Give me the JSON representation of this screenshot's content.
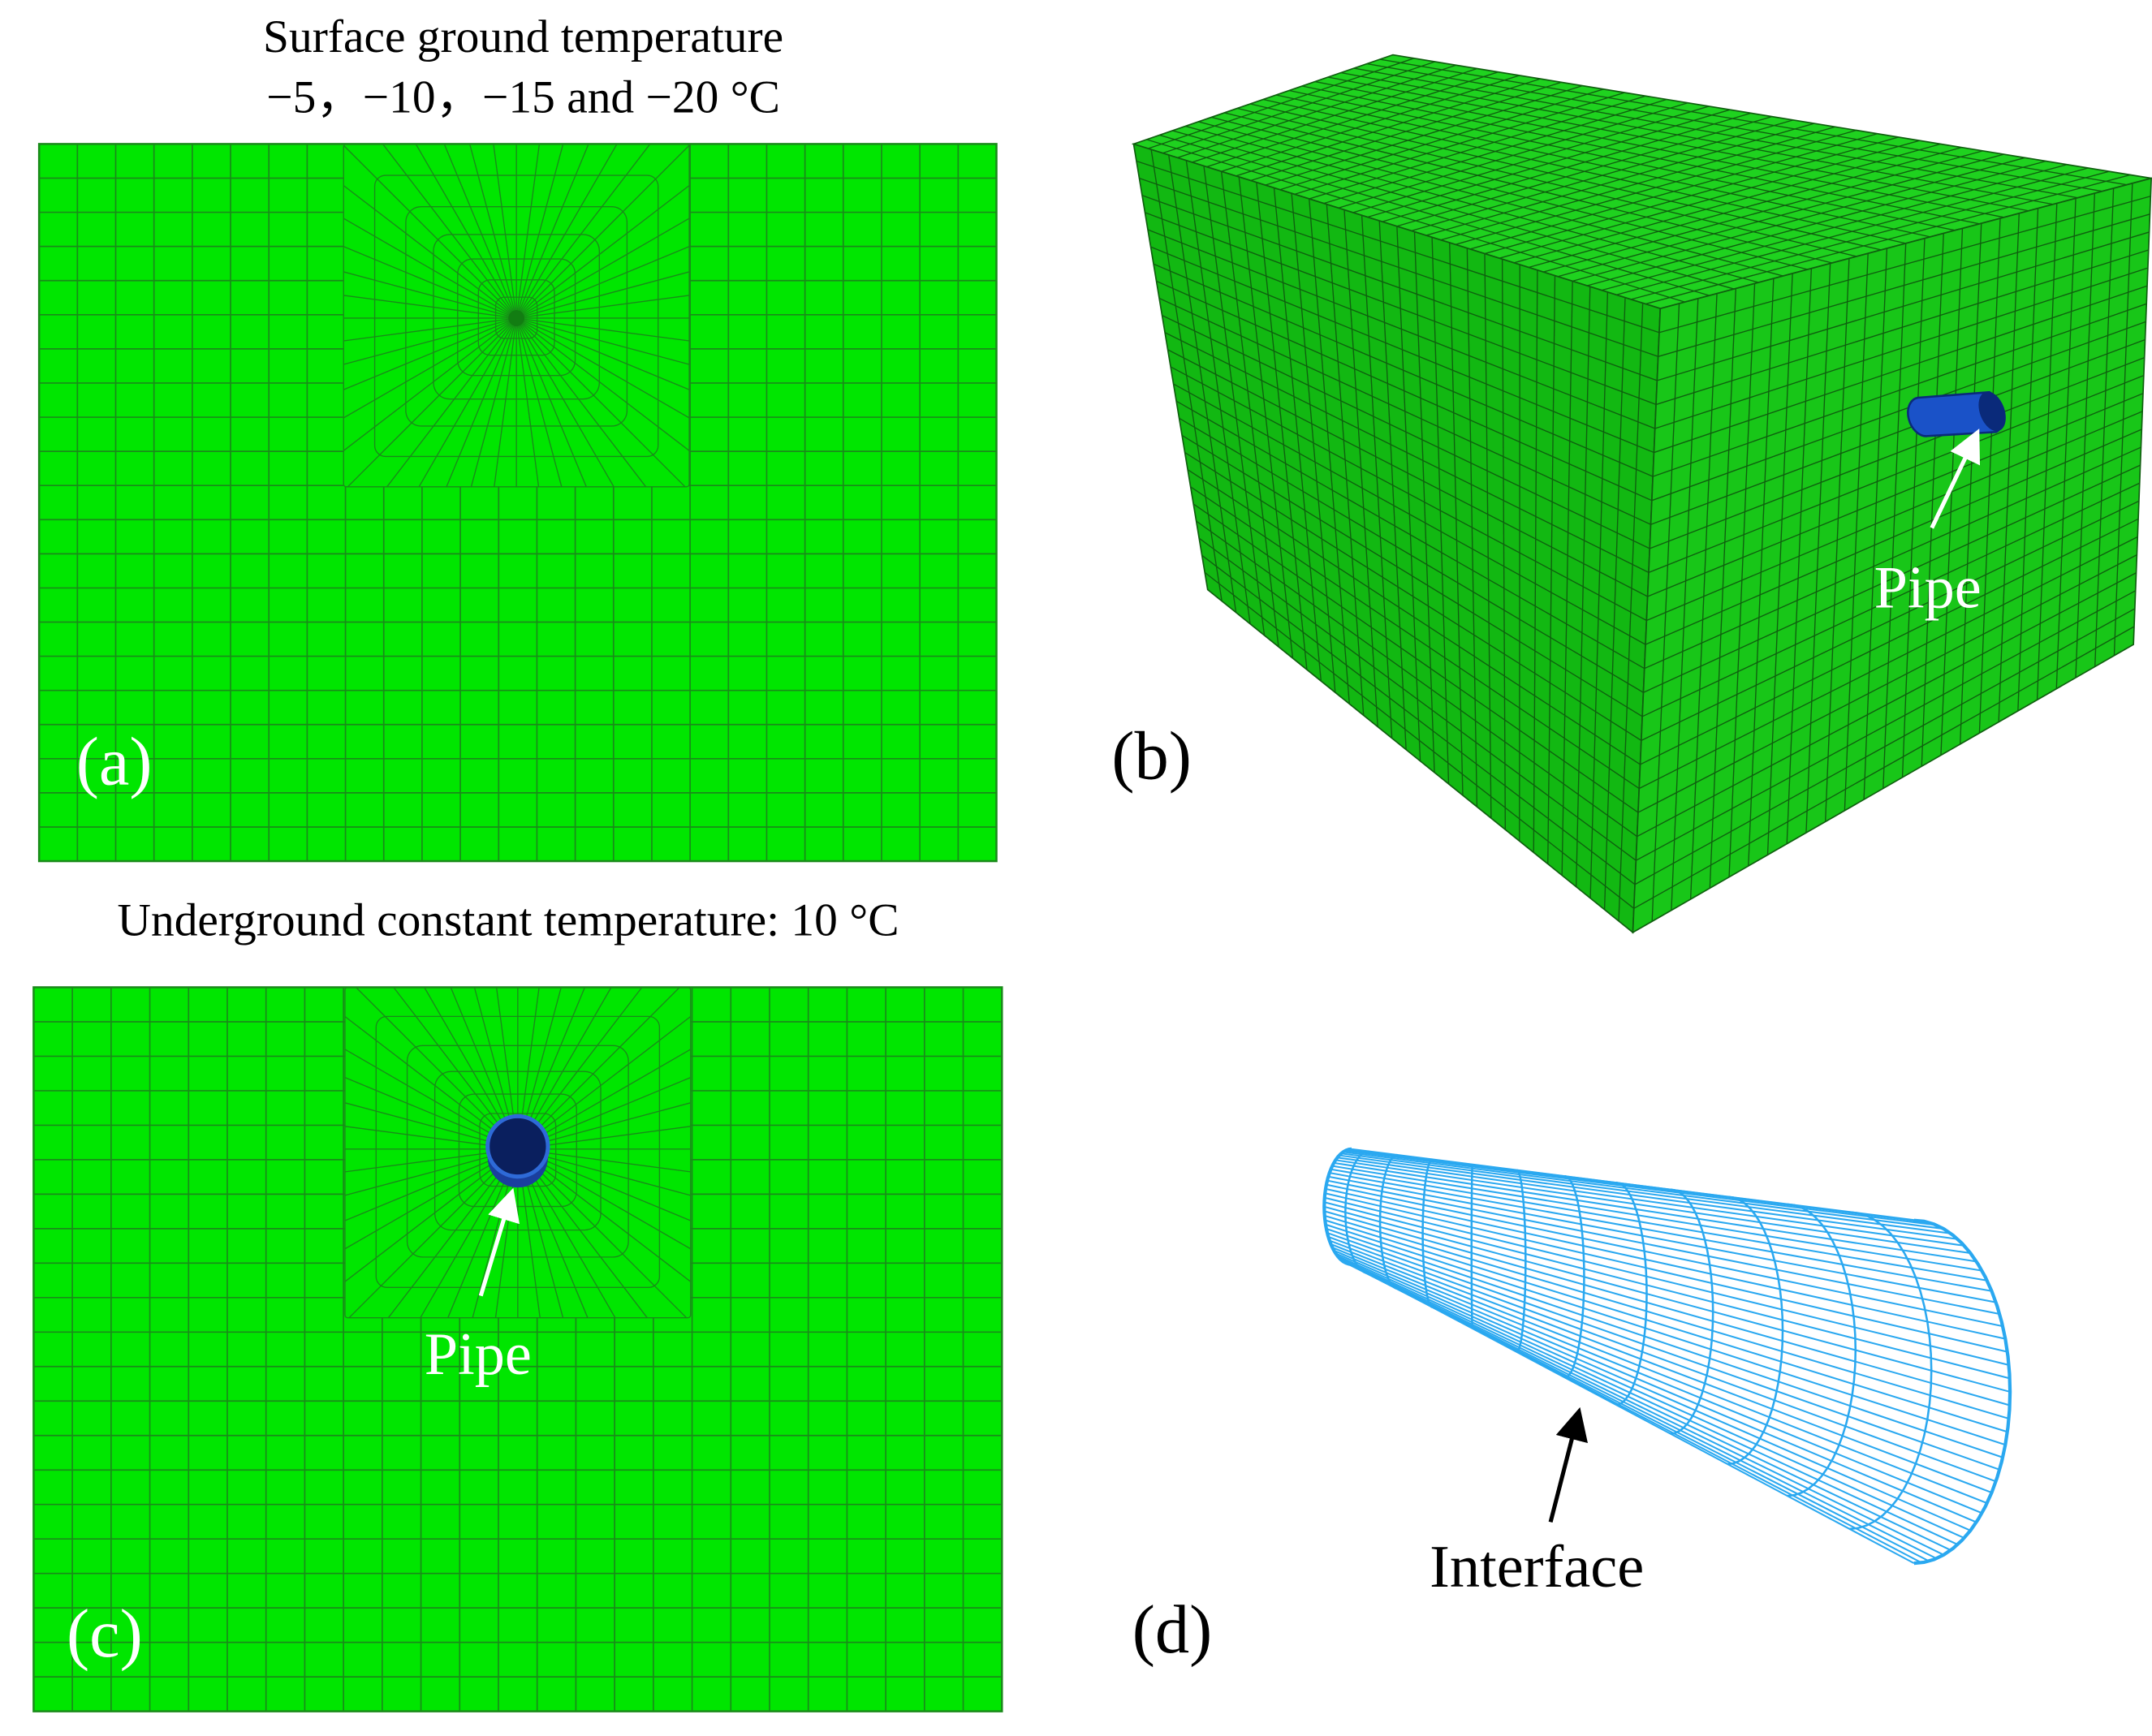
{
  "panel_a": {
    "label": "(a)",
    "caption_line_1": "Surface ground temperature",
    "caption_line_2": "−5，−10，−15 and −20 °C"
  },
  "panel_b": {
    "label": "(b)",
    "pointer": "Pipe"
  },
  "panel_c": {
    "label": "(c)",
    "caption": "Underground constant temperature: 10  °C",
    "pointer": "Pipe"
  },
  "panel_d": {
    "label": "(d)",
    "pointer": "Interface"
  }
}
